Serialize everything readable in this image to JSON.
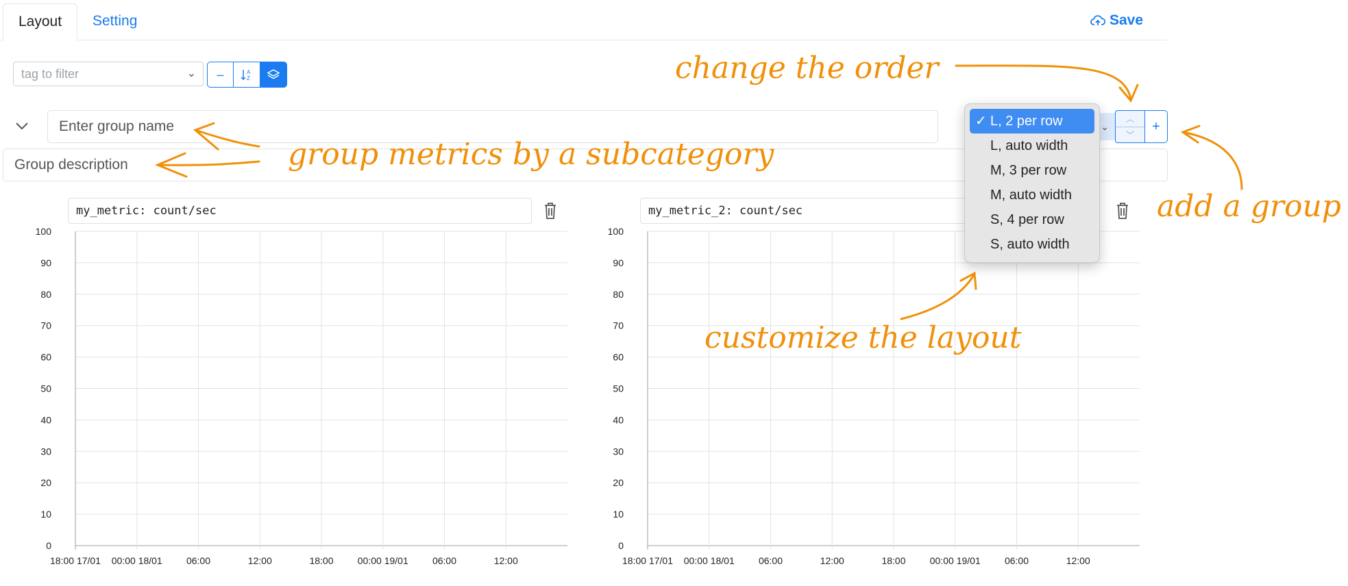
{
  "tabs": [
    {
      "label": "Layout",
      "active": true
    },
    {
      "label": "Setting",
      "active": false
    }
  ],
  "save_label": "Save",
  "filter": {
    "placeholder": "tag to filter"
  },
  "toolbar_icons": [
    "minus-icon",
    "sort-az-icon",
    "layers-icon"
  ],
  "group": {
    "name_placeholder": "Enter group name",
    "description_placeholder": "Group description"
  },
  "layout_menu": {
    "options": [
      "L, 2 per row",
      "L, auto width",
      "M, 3 per row",
      "M, auto width",
      "S, 4 per row",
      "S, auto width"
    ],
    "selected_index": 0
  },
  "add_label": "+",
  "panels": [
    {
      "metric": "my_metric: count/sec"
    },
    {
      "metric": "my_metric_2: count/sec"
    }
  ],
  "chart_data": [
    {
      "type": "line",
      "series": [],
      "ylim": [
        0,
        100
      ],
      "y_ticks": [
        "0",
        "10",
        "20",
        "30",
        "40",
        "50",
        "60",
        "70",
        "80",
        "90",
        "100"
      ],
      "x_ticks": [
        "18:00 17/01",
        "00:00 18/01",
        "06:00",
        "12:00",
        "18:00",
        "00:00 19/01",
        "06:00",
        "12:00"
      ],
      "grid": true
    },
    {
      "type": "line",
      "series": [],
      "ylim": [
        0,
        100
      ],
      "y_ticks": [
        "0",
        "10",
        "20",
        "30",
        "40",
        "50",
        "60",
        "70",
        "80",
        "90",
        "100"
      ],
      "x_ticks": [
        "18:00 17/01",
        "00:00 18/01",
        "06:00",
        "12:00",
        "18:00",
        "00:00 19/01",
        "06:00",
        "12:00"
      ],
      "grid": true
    }
  ],
  "annotations": {
    "order": "change the order",
    "group": "group metrics by a subcategory",
    "add": "add a group",
    "layout": "customize the layout"
  },
  "colors": {
    "accent": "#1a7cf0",
    "annotation": "#f0900a",
    "menu_selected": "#3f8cf3"
  }
}
